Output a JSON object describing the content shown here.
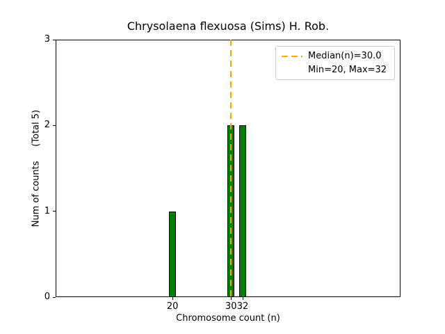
{
  "chart_data": {
    "type": "bar",
    "title": "Chrysolaena flexuosa (Sims) H. Rob.",
    "xlabel": "Chromosome count (n)",
    "ylabel": "Num of counts     (Total 5)",
    "points": [
      {
        "x": 20,
        "count": 1
      },
      {
        "x": 30,
        "count": 2
      },
      {
        "x": 32,
        "count": 2
      }
    ],
    "total_counts": 5,
    "median": 30.0,
    "min": 20,
    "max": 32,
    "xlim": [
      0,
      59
    ],
    "ylim": [
      0,
      3
    ],
    "xticks": [
      20,
      30,
      32
    ],
    "yticks": [
      0,
      1,
      2,
      3
    ],
    "bar_width_units": 1.25,
    "bar_color": "#008000",
    "bar_edge_color": "#000000",
    "median_line": {
      "x": 30,
      "color": "#FFA500",
      "style": "dashed"
    },
    "legend": {
      "position": "upper right",
      "entries": [
        {
          "label": "Median(n)=30.0",
          "sample": "dashed-line"
        },
        {
          "label": "Min=20, Max=32",
          "sample": "none"
        }
      ]
    },
    "grid": false,
    "background": "#ffffff"
  }
}
